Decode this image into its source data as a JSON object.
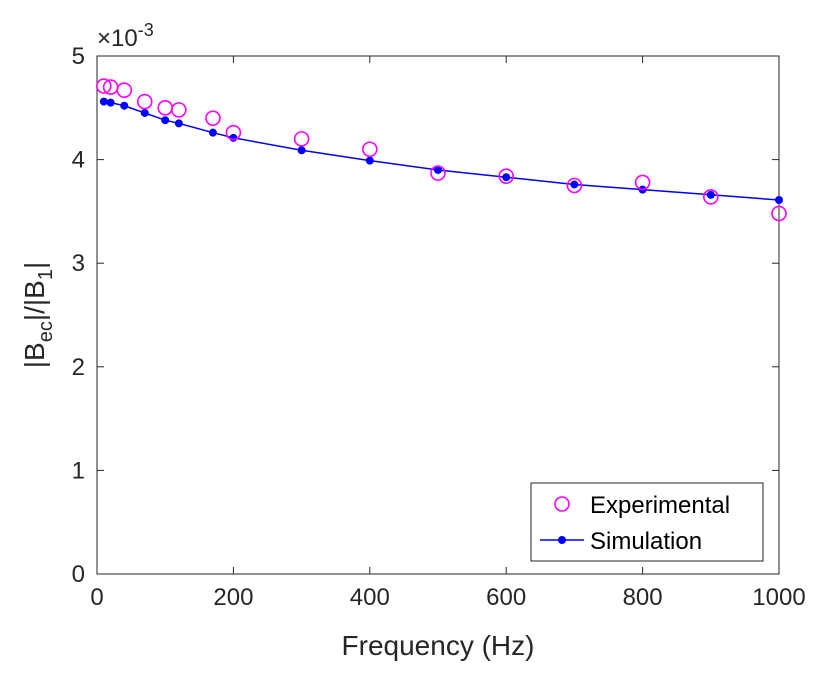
{
  "chart_data": {
    "type": "line",
    "title": "",
    "xlabel": "Frequency (Hz)",
    "ylabel_main": "|B",
    "ylabel_sub1": "ec",
    "ylabel_mid": "|/|B",
    "ylabel_sub2": "1",
    "ylabel_end": "|",
    "xlim": [
      0,
      1000
    ],
    "ylim": [
      0,
      5
    ],
    "xticks": [
      0,
      200,
      400,
      600,
      800,
      1000
    ],
    "yticks": [
      0,
      1,
      2,
      3,
      4,
      5
    ],
    "xtick_labels": [
      "0",
      "200",
      "400",
      "600",
      "800",
      "1000"
    ],
    "ytick_labels": [
      "0",
      "1",
      "2",
      "3",
      "4",
      "5"
    ],
    "exponent_base": "×10",
    "exponent_power": "-3",
    "legend_location": "bottom-right",
    "series": [
      {
        "name": "Experimental",
        "style": "circle-markers",
        "color": "#ff00ff",
        "x": [
          10,
          20,
          40,
          70,
          100,
          120,
          170,
          200,
          300,
          400,
          500,
          600,
          700,
          800,
          900,
          1000
        ],
        "y": [
          4.71,
          4.7,
          4.67,
          4.56,
          4.5,
          4.48,
          4.4,
          4.26,
          4.2,
          4.1,
          3.87,
          3.84,
          3.75,
          3.78,
          3.64,
          3.48
        ]
      },
      {
        "name": "Simulation",
        "style": "line-dot-markers",
        "color": "#0000ff",
        "x": [
          10,
          20,
          40,
          70,
          100,
          120,
          170,
          200,
          300,
          400,
          500,
          600,
          700,
          800,
          900,
          1000
        ],
        "y": [
          4.56,
          4.55,
          4.52,
          4.45,
          4.38,
          4.35,
          4.26,
          4.21,
          4.09,
          3.99,
          3.9,
          3.83,
          3.76,
          3.71,
          3.66,
          3.61
        ]
      }
    ]
  }
}
